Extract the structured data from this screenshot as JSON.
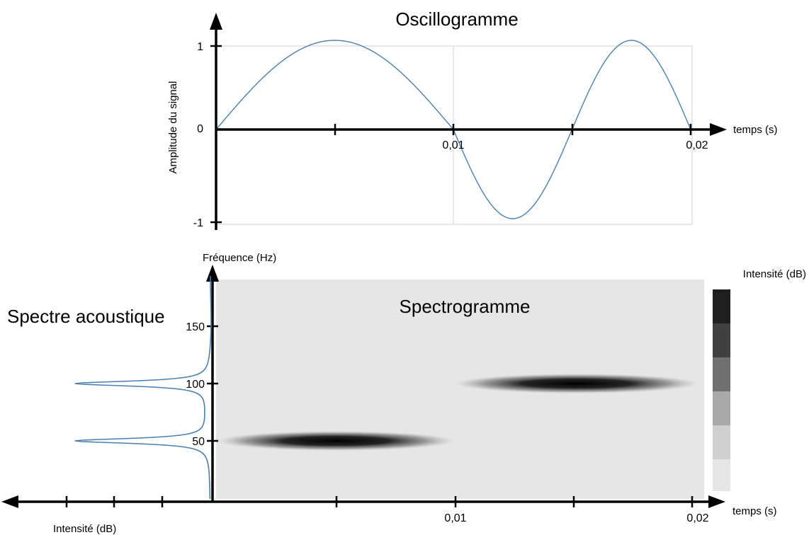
{
  "oscillogram": {
    "title": "Oscillogramme",
    "ylabel": "Amplitude du signal",
    "xlabel": "temps (s)",
    "yticks": [
      "1",
      "0",
      "-1"
    ],
    "xticks": [
      "0,01",
      "0,02"
    ],
    "line_color": "#4a7fb0"
  },
  "spectrum": {
    "title": "Spectre acoustique",
    "xlabel": "Intensité (dB)",
    "line_color": "#4a7fb0"
  },
  "spectrogram": {
    "title": "Spectrogramme",
    "ylabel": "Fréquence (Hz)",
    "xlabel": "temps (s)",
    "yticks": [
      "150",
      "100",
      "50"
    ],
    "xticks": [
      "0,01",
      "0,02"
    ],
    "background_color": "#e6e6e6"
  },
  "colorbar": {
    "label": "Intensité (dB)",
    "colors": [
      "#1e1e1e",
      "#404040",
      "#707070",
      "#a8a8a8",
      "#cfcfcf",
      "#e6e6e6"
    ]
  },
  "chart_data": [
    {
      "type": "line",
      "title": "Oscillogramme",
      "xlabel": "temps (s)",
      "ylabel": "Amplitude du signal",
      "xlim": [
        0,
        0.02
      ],
      "ylim": [
        -1,
        1
      ],
      "series": [
        {
          "segment": [
            0,
            0.01
          ],
          "frequency_hz": 50,
          "amplitude": 1
        },
        {
          "segment": [
            0.01,
            0.02
          ],
          "frequency_hz": 100,
          "amplitude": 1
        }
      ]
    },
    {
      "type": "heatmap",
      "title": "Spectrogramme",
      "xlabel": "temps (s)",
      "ylabel": "Fréquence (Hz)",
      "xlim": [
        0,
        0.02
      ],
      "ylim": [
        0,
        190
      ],
      "bands": [
        {
          "t_start": 0,
          "t_end": 0.01,
          "frequency_hz": 50
        },
        {
          "t_start": 0.01,
          "t_end": 0.02,
          "frequency_hz": 100
        }
      ]
    },
    {
      "type": "line",
      "title": "Spectre acoustique",
      "xlabel": "Intensité (dB)",
      "ylabel": "Fréquence (Hz)",
      "peaks_hz": [
        50,
        100
      ]
    }
  ]
}
